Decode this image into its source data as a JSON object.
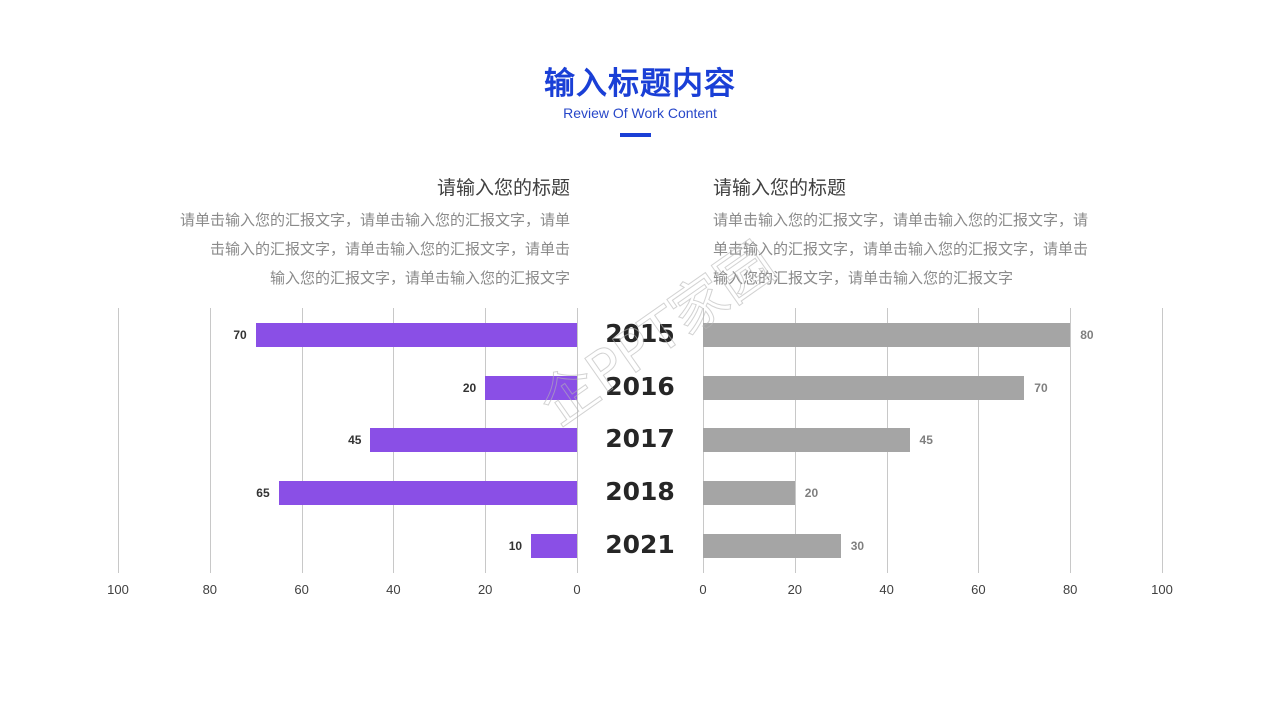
{
  "header": {
    "title": "输入标题内容",
    "subtitle": "Review Of Work Content"
  },
  "left_block": {
    "title": "请输入您的标题",
    "lines": [
      "请单击输入您的汇报文字，请单击输入您的汇报文字，请单",
      "击输入的汇报文字，请单击输入您的汇报文字，请单击",
      "输入您的汇报文字，请单击输入您的汇报文字"
    ]
  },
  "right_block": {
    "title": "请输入您的标题",
    "lines": [
      "请单击输入您的汇报文字，请单击输入您的汇报文字，请",
      "单击输入的汇报文字，请单击输入您的汇报文字，请单击",
      "输入您的汇报文字，请单击输入您的汇报文字"
    ]
  },
  "watermark": "企PPT家园",
  "colors": {
    "accent": "#1a3fd6",
    "left_series": "#8a4fe6",
    "right_series": "#a5a5a5"
  },
  "chart_data": {
    "type": "bar",
    "orientation": "horizontal",
    "layout": "butterfly",
    "categories": [
      "2015",
      "2016",
      "2017",
      "2018",
      "2021"
    ],
    "series": [
      {
        "name": "left",
        "side": "left",
        "color": "#8a4fe6",
        "values": [
          70,
          20,
          45,
          65,
          10
        ]
      },
      {
        "name": "right",
        "side": "right",
        "color": "#a5a5a5",
        "values": [
          80,
          70,
          45,
          20,
          30
        ]
      }
    ],
    "left_ticks": [
      "100",
      "80",
      "60",
      "40",
      "20",
      "0"
    ],
    "right_ticks": [
      "0",
      "20",
      "40",
      "60",
      "80",
      "100"
    ],
    "xlim": [
      0,
      100
    ],
    "grid": true,
    "data_labels": true,
    "title": "",
    "xlabel": "",
    "ylabel": ""
  }
}
